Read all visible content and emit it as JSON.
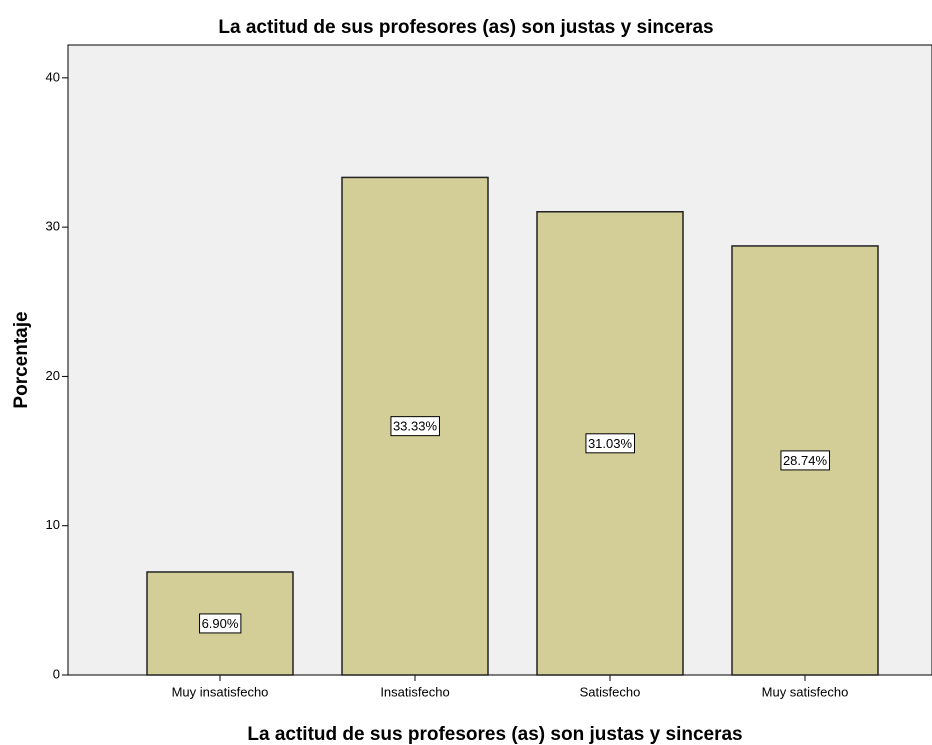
{
  "chart_data": {
    "type": "bar",
    "title": "La actitud de sus profesores (as) son justas y sinceras",
    "x_label": "La actitud de sus profesores (as) son justas y sinceras",
    "y_label": "Porcentaje",
    "categories": [
      "Muy insatisfecho",
      "Insatisfecho",
      "Satisfecho",
      "Muy satisfecho"
    ],
    "values": [
      6.9,
      33.33,
      31.03,
      28.74
    ],
    "value_labels": [
      "6.90%",
      "33.33%",
      "31.03%",
      "28.74%"
    ],
    "color": "#d3ce97",
    "ylim": [
      0,
      42.2
    ],
    "yticks": [
      0,
      10,
      20,
      30,
      40
    ],
    "grid": false
  }
}
